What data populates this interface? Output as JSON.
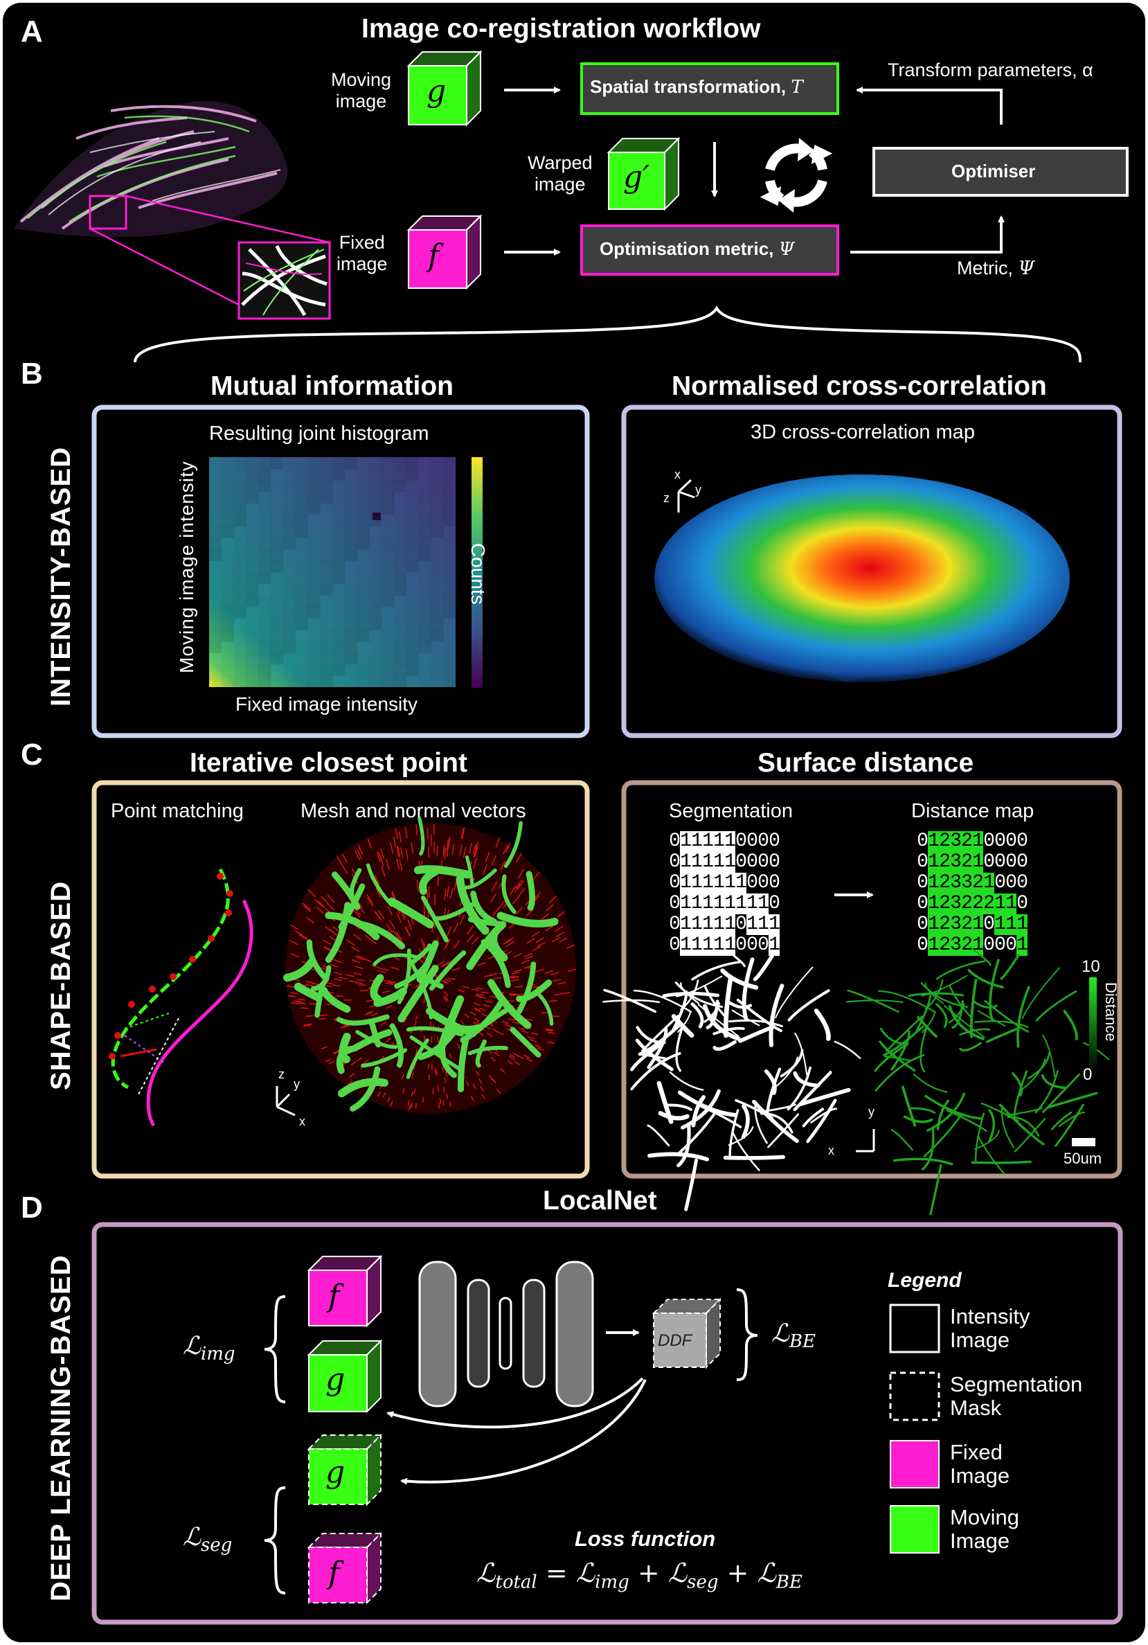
{
  "panel_a": {
    "letter": "A",
    "title": "Image co-registration workflow",
    "moving_image": "Moving\nimage",
    "fixed_image": "Fixed\nimage",
    "warped_image": "Warped\nimage",
    "moving_symbol": "g",
    "fixed_symbol": "f",
    "warped_symbol": "g′",
    "spatial_transformation": "Spatial transformation, ",
    "spatial_symbol": "T",
    "optimisation_metric": "Optimisation metric, ",
    "metric_symbol": "Ψ",
    "optimiser": "Optimiser",
    "transform_parameters": "Transform parameters, α",
    "metric_label": "Metric, ",
    "metric_label_symbol": "Ψ"
  },
  "panel_b": {
    "letter": "B",
    "side_label": "INTENSITY-BASED",
    "mi_title": "Mutual information",
    "mi_subtitle": "Resulting joint histogram",
    "mi_ylabel": "Moving image intensity",
    "mi_xlabel": "Fixed image intensity",
    "mi_colorbar": "Counts",
    "ncc_title": "Normalised cross-correlation",
    "ncc_subtitle": "3D cross-correlation map",
    "axis_x": "x",
    "axis_y": "y",
    "axis_z": "z"
  },
  "panel_c": {
    "letter": "C",
    "side_label": "SHAPE-BASED",
    "icp_title": "Iterative closest point",
    "point_matching": "Point matching",
    "mesh_normals": "Mesh and normal vectors",
    "sd_title": "Surface distance",
    "segmentation": "Segmentation",
    "distance_map": "Distance map",
    "segmentation_rows": [
      "0111110000",
      "0111110000",
      "0111111000",
      "0111111110",
      "0111110111",
      "0111110001"
    ],
    "distance_rows": [
      "0123210000",
      "0123210000",
      "0123321000",
      "0123222110",
      "0123210111",
      "0123210001"
    ],
    "colorbar_max": "10",
    "colorbar_min": "0",
    "colorbar_label": "Distance",
    "scalebar": "50um",
    "axis_x": "x",
    "axis_y": "y",
    "axis_z": "z"
  },
  "panel_d": {
    "letter": "D",
    "side_label": "DEEP LEARNING-BASED",
    "title": "LocalNet",
    "l_img": "ℒ",
    "l_img_sub": "img",
    "l_seg": "ℒ",
    "l_seg_sub": "seg",
    "l_be": "ℒ",
    "l_be_sub": "BE",
    "ddf": "DDF",
    "loss_title": "Loss function",
    "loss_eq": "ℒtotal = ℒimg + ℒseg + ℒBE",
    "legend_title": "Legend",
    "legend_items": [
      {
        "label": "Intensity\nImage"
      },
      {
        "label": "Segmentation\nMask"
      },
      {
        "label": "Fixed\nImage"
      },
      {
        "label": "Moving\nImage"
      }
    ],
    "fixed_symbol": "f",
    "moving_symbol": "g"
  },
  "colors": {
    "magenta": "#ff1dd2",
    "green": "#39ff14",
    "panel_b_left": "#c9d7f3",
    "panel_b_right": "#c6bfe3",
    "panel_c_left": "#f2dcae",
    "panel_c_right": "#b8988c",
    "panel_d": "#c79bc3"
  }
}
